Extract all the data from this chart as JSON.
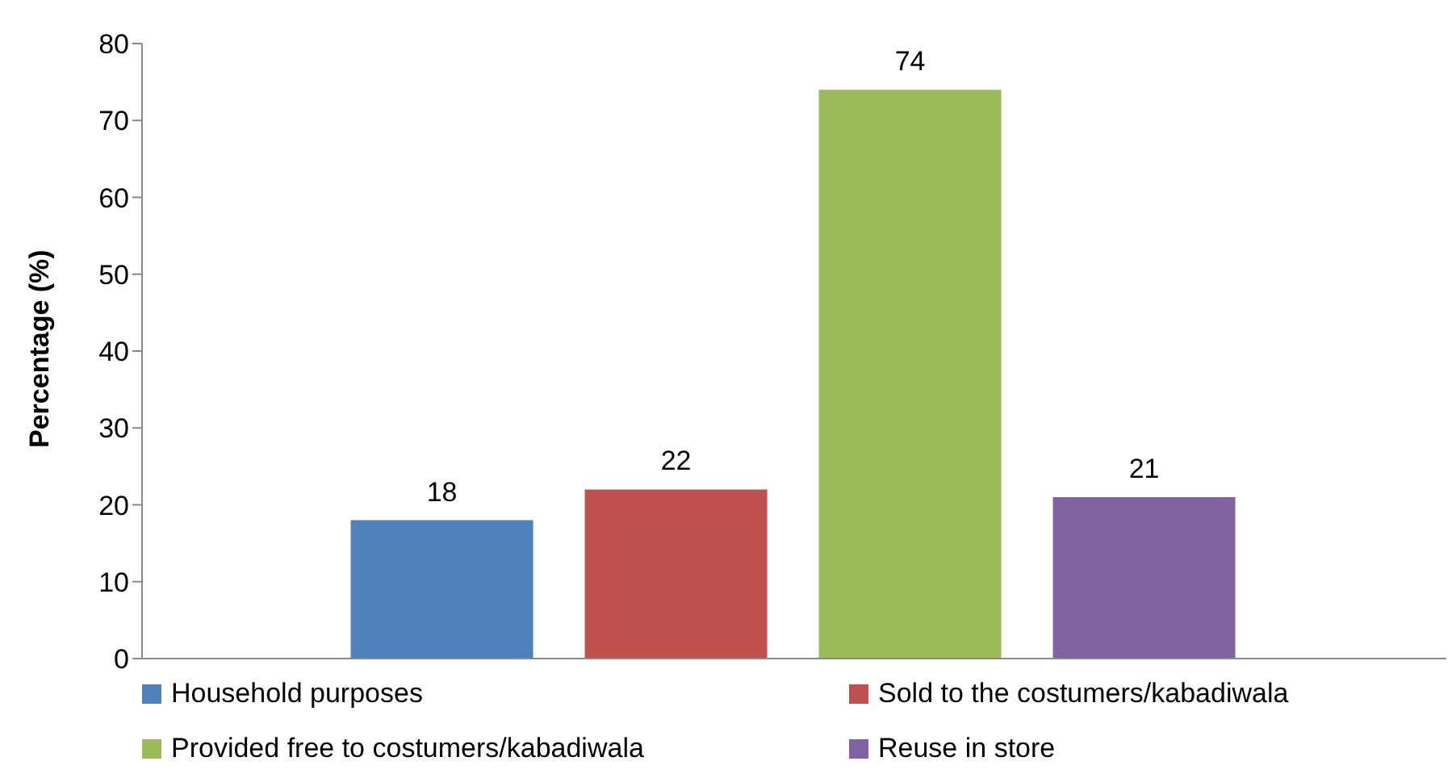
{
  "chart_data": {
    "type": "bar",
    "ylabel": "Percentage (%)",
    "categories": [
      null
    ],
    "series": [
      {
        "name": "Household purposes",
        "color": "#4f81bd",
        "values": [
          18
        ]
      },
      {
        "name": "Sold to the costumers/kabadiwala",
        "color": "#c0504d",
        "values": [
          22
        ]
      },
      {
        "name": "Provided free to costumers/kabadiwala",
        "color": "#9bbb59",
        "values": [
          74
        ]
      },
      {
        "name": "Reuse in store",
        "color": "#8064a2",
        "values": [
          21
        ]
      }
    ],
    "ylim": [
      0,
      80
    ],
    "yticks": [
      0,
      10,
      20,
      30,
      40,
      50,
      60,
      70,
      80
    ],
    "data_labels": true,
    "grid": false,
    "legend": "bottom",
    "tick_labels": "y"
  }
}
